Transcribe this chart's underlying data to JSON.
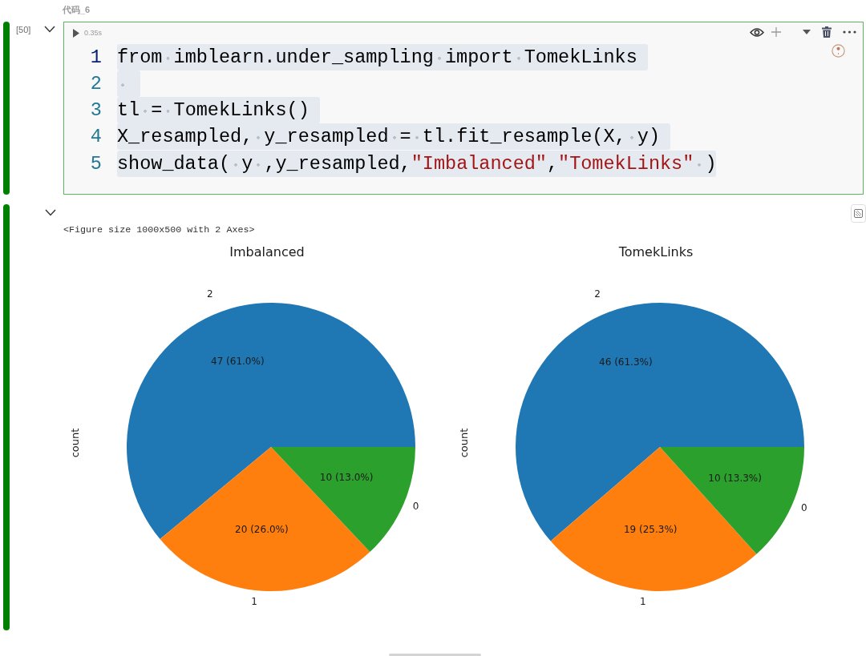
{
  "chart_data": [
    {
      "type": "other",
      "title": "代码_6",
      "annotations": [
        "[50]",
        "0.35s",
        "1 from imblearn.under_sampling import TomekLinks",
        "2",
        "3 tl = TomekLinks()",
        "4 X_resampled, y_resampled = tl.fit_resample(X, y)",
        "5 show_data( y ,y_resampled,\"Imbalanced\",\"TomekLinks\" )",
        "<Figure size 1000x500 with 2 Axes>"
      ]
    },
    {
      "type": "pie",
      "title": "Imbalanced",
      "ylabel": "count",
      "categories": [
        "2",
        "1",
        "0"
      ],
      "values": [
        47,
        20,
        10
      ],
      "colors": [
        "#1f77b4",
        "#ff7f0e",
        "#2ca02c"
      ],
      "value_labels": [
        "47 (61.0%)",
        "20 (26.0%)",
        "10 (13.0%)"
      ]
    },
    {
      "type": "pie",
      "title": "TomekLinks",
      "ylabel": "count",
      "categories": [
        "2",
        "1",
        "0"
      ],
      "values": [
        46,
        19,
        10
      ],
      "colors": [
        "#1f77b4",
        "#ff7f0e",
        "#2ca02c"
      ],
      "value_labels": [
        "46 (61.3%)",
        "19 (25.3%)",
        "10 (13.3%)"
      ]
    }
  ]
}
